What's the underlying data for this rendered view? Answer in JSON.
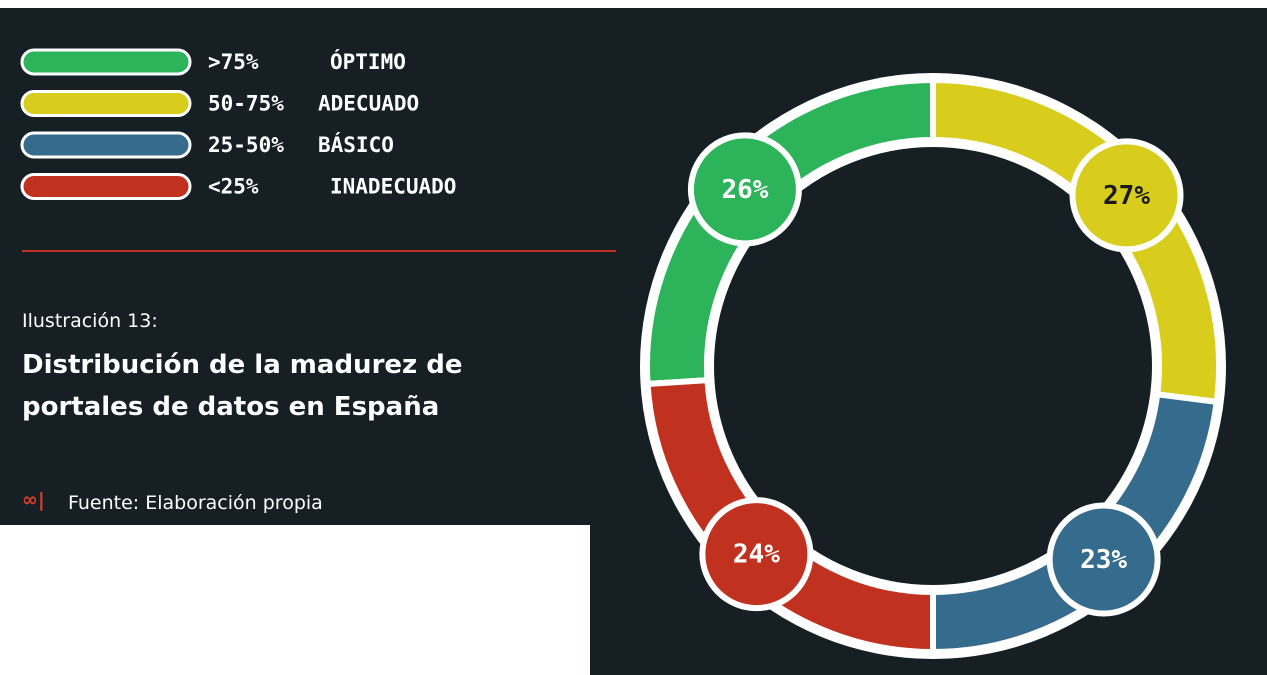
{
  "chart_data": {
    "type": "pie",
    "donut": true,
    "figure_label": "Ilustración 13:",
    "title": "Distribución de la madurez de portales de datos en España",
    "source": "Fuente: Elaboración propia",
    "categories": [
      ">75%",
      "50-75%",
      "25-50%",
      "<25%"
    ],
    "legend_labels": [
      "ÓPTIMO",
      "ADECUADO",
      "BÁSICO",
      "INADECUADO"
    ],
    "values": [
      26,
      27,
      23,
      24
    ],
    "value_labels": [
      "26%",
      "27%",
      "23%",
      "24%"
    ],
    "colors": [
      "#2db35a",
      "#d8cc1c",
      "#356b8c",
      "#c0321f"
    ]
  }
}
